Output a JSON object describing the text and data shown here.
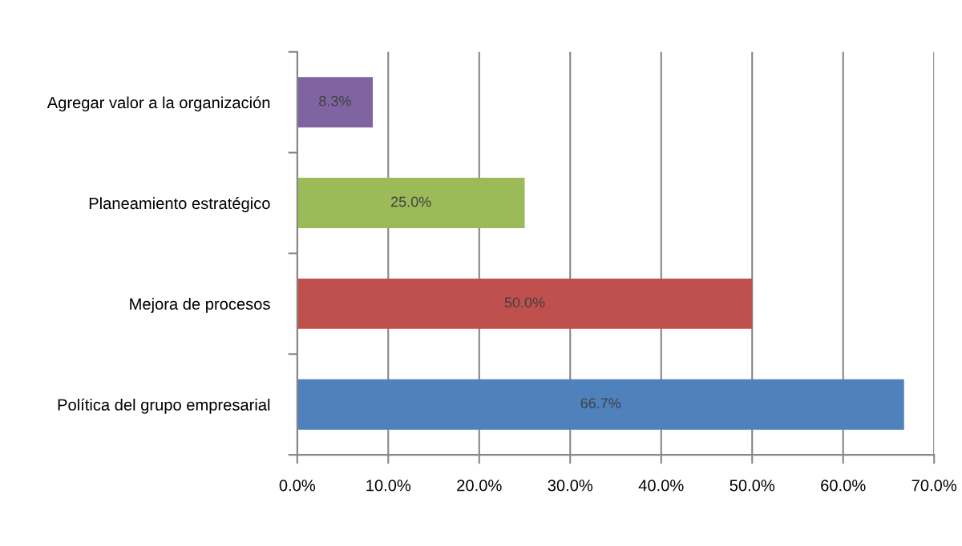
{
  "chart_data": {
    "type": "bar",
    "orientation": "horizontal",
    "categories": [
      "Agregar valor a la organización",
      "Planeamiento estratégico",
      "Mejora de procesos",
      "Política del grupo empresarial"
    ],
    "values": [
      8.3,
      25.0,
      50.0,
      66.7
    ],
    "colors": [
      "#8064a2",
      "#9bbb59",
      "#c0504d",
      "#4f81bd"
    ],
    "value_labels": [
      "8.3%",
      "25.0%",
      "50.0%",
      "66.7%"
    ],
    "xlim": [
      0,
      70
    ],
    "xticks": [
      {
        "value": 0,
        "label": "0.0%"
      },
      {
        "value": 10,
        "label": "10.0%"
      },
      {
        "value": 20,
        "label": "20.0%"
      },
      {
        "value": 30,
        "label": "30.0%"
      },
      {
        "value": 40,
        "label": "40.0%"
      },
      {
        "value": 50,
        "label": "50.0%"
      },
      {
        "value": 60,
        "label": "60.0%"
      },
      {
        "value": 70,
        "label": "70.0%"
      }
    ],
    "grid": "x"
  }
}
